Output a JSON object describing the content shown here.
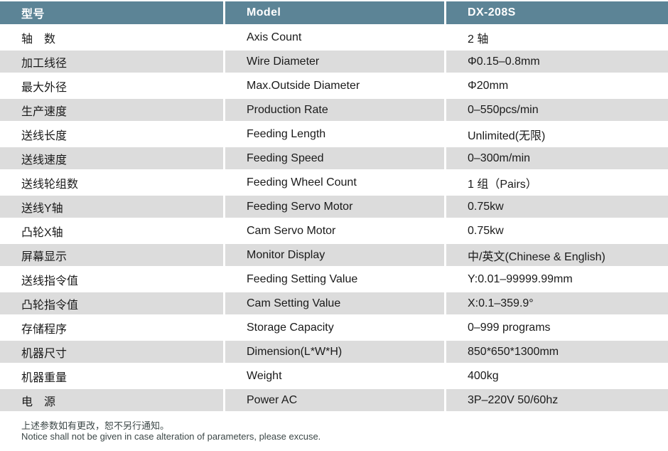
{
  "table": {
    "header": {
      "cn": "型号",
      "en": "Model",
      "value": "DX-208S"
    },
    "rows": [
      {
        "cn": "轴　数",
        "en": "Axis Count",
        "value": "2 轴"
      },
      {
        "cn": "加工线径",
        "en": "Wire Diameter",
        "value": "Φ0.15–0.8mm"
      },
      {
        "cn": "最大外径",
        "en": "Max.Outside Diameter",
        "value": "Φ20mm"
      },
      {
        "cn": "生产速度",
        "en": "Production Rate",
        "value": "0–550pcs/min"
      },
      {
        "cn": "送线长度",
        "en": "Feeding Length",
        "value": "Unlimited(无限)"
      },
      {
        "cn": "送线速度",
        "en": "Feeding Speed",
        "value": "0–300m/min"
      },
      {
        "cn": "送线轮组数",
        "en": "Feeding Wheel Count",
        "value": "1 组（Pairs）"
      },
      {
        "cn": "送线Y轴",
        "en": "Feeding Servo Motor",
        "value": "0.75kw"
      },
      {
        "cn": "凸轮X轴",
        "en": "Cam Servo Motor",
        "value": "0.75kw"
      },
      {
        "cn": "屏幕显示",
        "en": "Monitor Display",
        "value": "中/英文(Chinese & English)"
      },
      {
        "cn": "送线指令值",
        "en": "Feeding Setting Value",
        "value": "Y:0.01–99999.99mm"
      },
      {
        "cn": "凸轮指令值",
        "en": "Cam Setting Value",
        "value": "X:0.1–359.9°"
      },
      {
        "cn": "存储程序",
        "en": "Storage Capacity",
        "value": "0–999 programs"
      },
      {
        "cn": "机器尺寸",
        "en": "Dimension(L*W*H)",
        "value": "850*650*1300mm"
      },
      {
        "cn": "机器重量",
        "en": "Weight",
        "value": "400kg"
      },
      {
        "cn": "电　源",
        "en": "Power AC",
        "value": "3P–220V 50/60hz"
      }
    ]
  },
  "footnote": {
    "cn": "上述参数如有更改，恕不另行通知。",
    "en": "Notice shall not be given in case alteration of parameters, please excuse."
  },
  "colors": {
    "header_bg": "#5C8496",
    "header_text": "#FFFFFF",
    "row_alt_bg": "#DCDCDC",
    "body_text": "#1A1A1A",
    "footnote_text": "#3C4747"
  }
}
